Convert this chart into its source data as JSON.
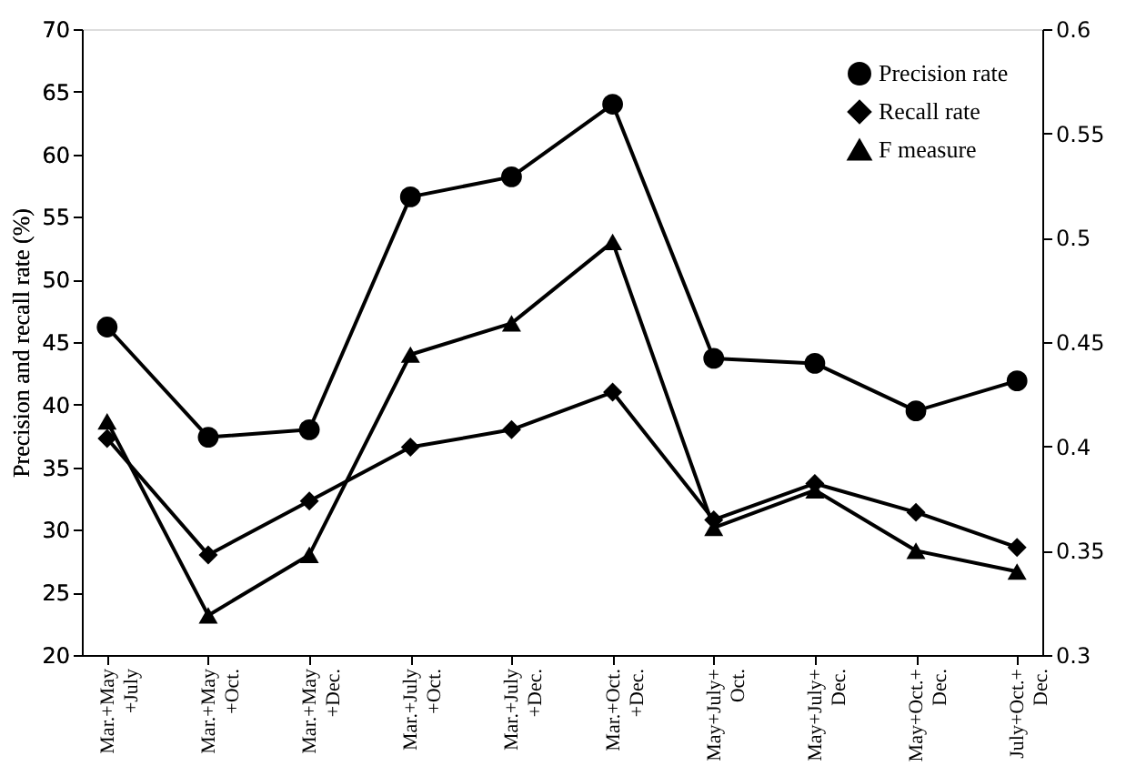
{
  "chart_data": {
    "type": "line",
    "ylabel": "Precision and recall rate (%)",
    "categories": [
      "Mar.+May\n+July",
      "Mar.+May\n+Oct.",
      "Mar.+May\n+Dec.",
      "Mar.+July\n+Oct.",
      "Mar.+July\n+Dec.",
      "Mar.+Oct.\n+Dec.",
      "May+July+\nOct.",
      "May+July+\nDec.",
      "May+Oct.+\nDec.",
      "July+Oct.+\nDec."
    ],
    "series": [
      {
        "name": "Precision rate",
        "color": "#000000",
        "marker": "circle",
        "values": [
          46.2,
          37.4,
          38.0,
          56.6,
          58.2,
          64.0,
          43.7,
          43.3,
          39.5,
          41.9
        ]
      },
      {
        "name": "Recall rate",
        "color": "#000000",
        "marker": "diamond",
        "values": [
          37.3,
          28.0,
          32.3,
          36.6,
          38.0,
          41.0,
          30.8,
          33.7,
          31.4,
          28.6
        ]
      },
      {
        "name": "F measure",
        "color": "#000000",
        "marker": "triangle",
        "axis": "y2",
        "values": [
          0.412,
          0.319,
          0.348,
          0.444,
          0.459,
          0.498,
          0.361,
          0.379,
          0.35,
          0.34
        ]
      }
    ],
    "ylim": [
      20,
      70
    ],
    "yticks": [
      20,
      25,
      30,
      35,
      40,
      45,
      50,
      55,
      60,
      65,
      70
    ],
    "y2lim": [
      0.3,
      0.6
    ],
    "y2ticks": [
      0.3,
      0.35,
      0.4,
      0.45,
      0.5,
      0.55,
      0.6
    ],
    "grid": false,
    "legend": "top right",
    "line_style": "solid"
  }
}
